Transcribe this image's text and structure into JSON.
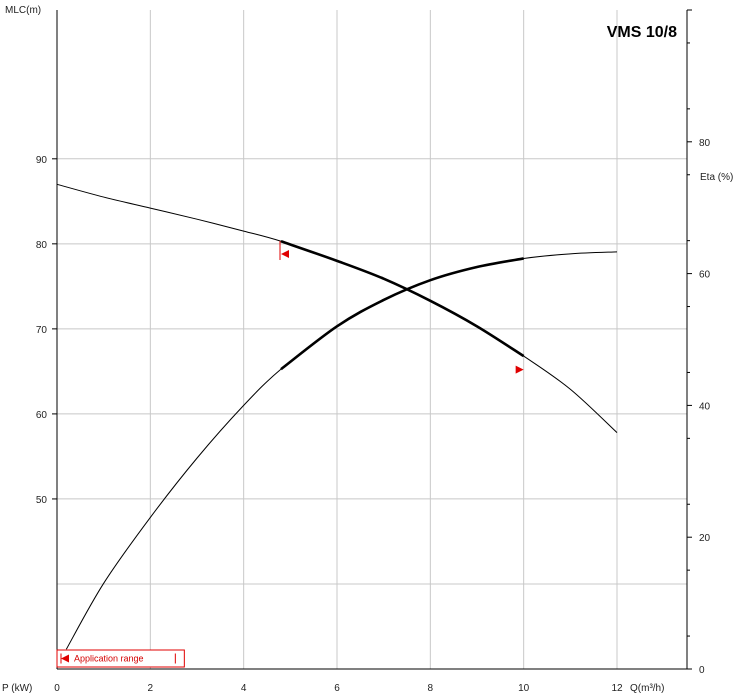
{
  "chart_data": {
    "type": "line",
    "title": "VMS 10/8",
    "xlabel": "Q(m³/h)",
    "ylabel_left": "MLC(m)",
    "ylabel_right": "Eta (%)",
    "xlabel_left_corner": "P (kW)",
    "xlim": [
      0,
      13.5
    ],
    "ylim_left": [
      30,
      107.5
    ],
    "ylim_right": [
      0,
      100
    ],
    "x_ticks": [
      "0",
      "2",
      "4",
      "6",
      "8",
      "10",
      "12"
    ],
    "y_ticks_left": [
      "50",
      "60",
      "70",
      "80",
      "90"
    ],
    "y_ticks_right": [
      "0",
      "20",
      "40",
      "60",
      "80"
    ],
    "y_ticks_right_mark_only": [
      100
    ],
    "grid": true,
    "legend": "none",
    "series": [
      {
        "axis": "left",
        "points": [
          [
            0,
            87.0
          ],
          [
            1,
            85.5
          ],
          [
            2,
            84.2
          ],
          [
            3,
            82.9
          ],
          [
            4,
            81.5
          ],
          [
            4.8,
            80.3
          ],
          [
            6,
            78.0
          ],
          [
            7,
            75.9
          ],
          [
            8,
            73.3
          ],
          [
            9,
            70.3
          ],
          [
            10,
            66.8
          ],
          [
            11,
            62.9
          ],
          [
            12,
            57.8
          ]
        ],
        "bold_range": [
          4.8,
          10
        ]
      },
      {
        "axis": "right",
        "points": [
          [
            0.2,
            3
          ],
          [
            1,
            13
          ],
          [
            2,
            23
          ],
          [
            3,
            32
          ],
          [
            4,
            40
          ],
          [
            4.8,
            45.5
          ],
          [
            6,
            52
          ],
          [
            7,
            56
          ],
          [
            8,
            59
          ],
          [
            9,
            61
          ],
          [
            10,
            62.3
          ],
          [
            11,
            63
          ],
          [
            12,
            63.3
          ]
        ],
        "bold_range": [
          4.8,
          10
        ]
      }
    ],
    "markers": [
      {
        "x": 4.8,
        "y": 78.8,
        "axis": "left",
        "direction": "left"
      },
      {
        "x": 10,
        "y": 65.2,
        "axis": "left",
        "direction": "right"
      }
    ],
    "application_range": {
      "label": "Application range",
      "x_start": 0,
      "x_end": 2.6
    },
    "colors": {
      "line": "#000000",
      "grid": "#c8c8c8",
      "accent": "#e00000"
    }
  }
}
